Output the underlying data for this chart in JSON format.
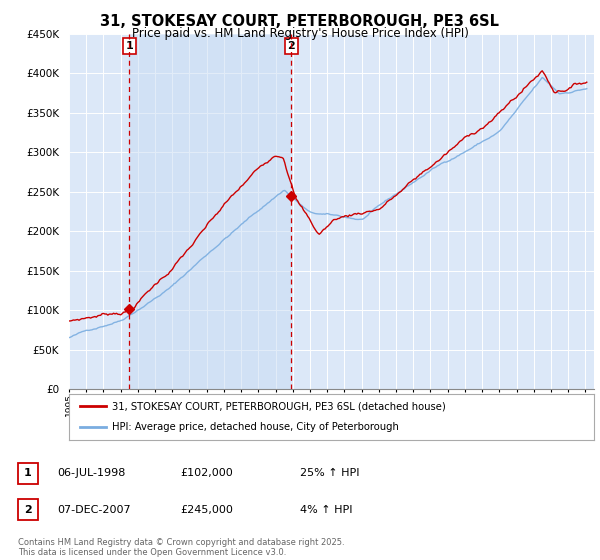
{
  "title": "31, STOKESAY COURT, PETERBOROUGH, PE3 6SL",
  "subtitle": "Price paid vs. HM Land Registry's House Price Index (HPI)",
  "legend_entry1": "31, STOKESAY COURT, PETERBOROUGH, PE3 6SL (detached house)",
  "legend_entry2": "HPI: Average price, detached house, City of Peterborough",
  "annotation1_label": "1",
  "annotation1_date": "06-JUL-1998",
  "annotation1_price": 102000,
  "annotation1_hpi": "25% ↑ HPI",
  "annotation2_label": "2",
  "annotation2_date": "07-DEC-2007",
  "annotation2_price": 245000,
  "annotation2_hpi": "4% ↑ HPI",
  "footer": "Contains HM Land Registry data © Crown copyright and database right 2025.\nThis data is licensed under the Open Government Licence v3.0.",
  "ylim": [
    0,
    450000
  ],
  "yticks": [
    0,
    50000,
    100000,
    150000,
    200000,
    250000,
    300000,
    350000,
    400000,
    450000
  ],
  "background_color": "#ffffff",
  "plot_bg_color": "#dce8f8",
  "grid_color": "#ffffff",
  "line1_color": "#cc0000",
  "line2_color": "#7aade0",
  "vline_color": "#cc0000",
  "marker_color": "#cc0000",
  "ann_box_color": "#cc0000",
  "ann1_x": 1998.5,
  "ann2_x": 2007.92,
  "ann1_y": 102000,
  "ann2_y": 245000,
  "xmin": 1995,
  "xmax": 2025.5
}
